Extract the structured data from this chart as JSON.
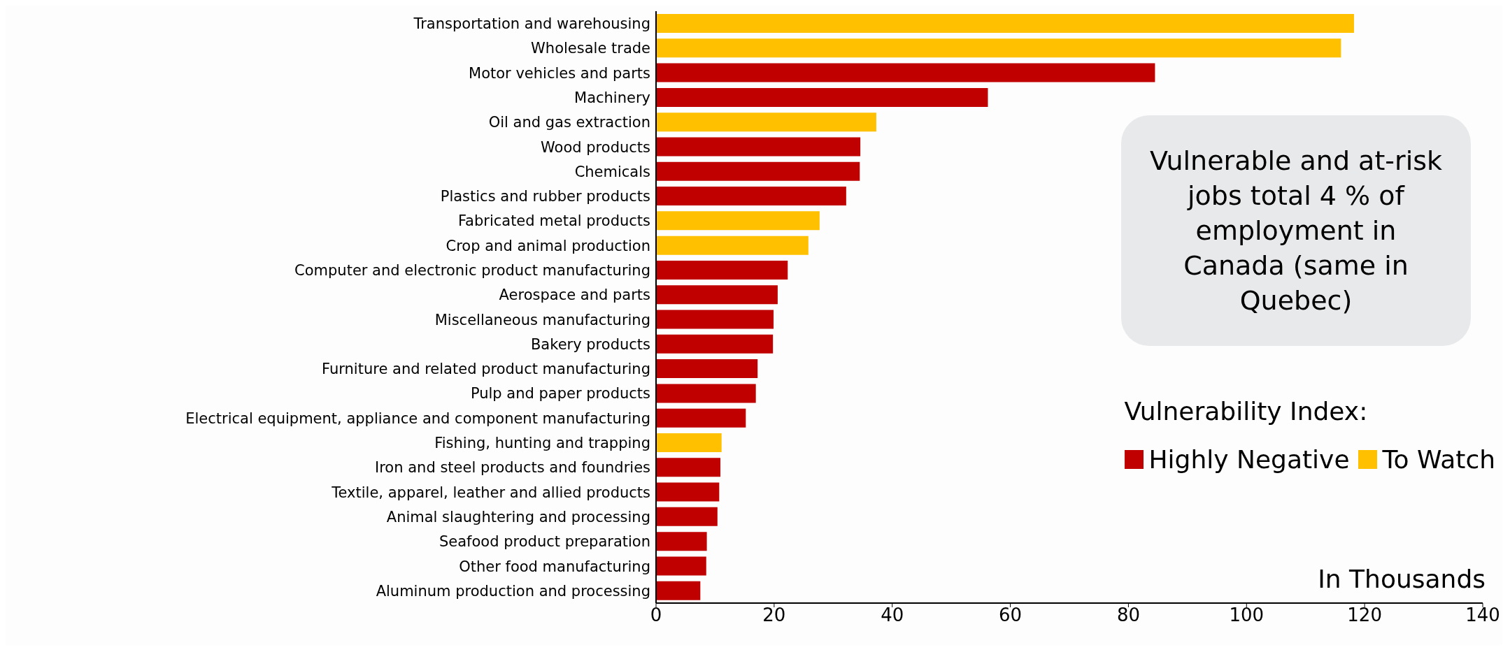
{
  "chart_data": {
    "type": "bar",
    "orientation": "horizontal",
    "stacked": true,
    "categories": [
      "Transportation and warehousing",
      "Wholesale trade",
      "Motor vehicles and parts",
      "Machinery",
      "Oil and gas extraction",
      "Wood products",
      "Chemicals",
      "Plastics and rubber products",
      "Fabricated metal products",
      "Crop and animal production",
      "Computer and electronic product manufacturing",
      "Aerospace and parts",
      "Miscellaneous manufacturing",
      "Bakery products",
      "Furniture and related product manufacturing",
      "Pulp and paper products",
      "Electrical equipment, appliance and component manufacturing",
      "Fishing, hunting and trapping",
      "Iron and steel products and foundries",
      "Textile, apparel, leather and allied products",
      "Animal slaughtering and processing",
      "Seafood product preparation",
      "Other food manufacturing",
      "Aluminum production and processing"
    ],
    "series": [
      {
        "name": "Highly Negative",
        "color": "#c00000",
        "values": [
          null,
          null,
          84.5,
          56.2,
          null,
          34.6,
          34.5,
          32.2,
          null,
          null,
          22.3,
          20.6,
          19.9,
          19.8,
          17.2,
          16.9,
          15.2,
          null,
          10.9,
          10.7,
          10.4,
          8.6,
          8.5,
          7.5
        ]
      },
      {
        "name": "To Watch",
        "color": "#ffc000",
        "values": [
          118.2,
          116.0,
          null,
          null,
          37.3,
          null,
          null,
          null,
          27.7,
          25.8,
          null,
          null,
          null,
          null,
          null,
          null,
          null,
          11.1,
          null,
          null,
          null,
          null,
          null,
          null
        ]
      }
    ],
    "xlim": [
      0,
      140
    ],
    "xticks": [
      0,
      20,
      40,
      60,
      80,
      100,
      120,
      140
    ],
    "grid": false,
    "legend": "right",
    "legend_title": "Vulnerability Index:",
    "xlabel": "In Thousands",
    "annotations": [
      "Vulnerable and at-risk jobs total 4 % of employment in Canada (same in Quebec)"
    ]
  }
}
